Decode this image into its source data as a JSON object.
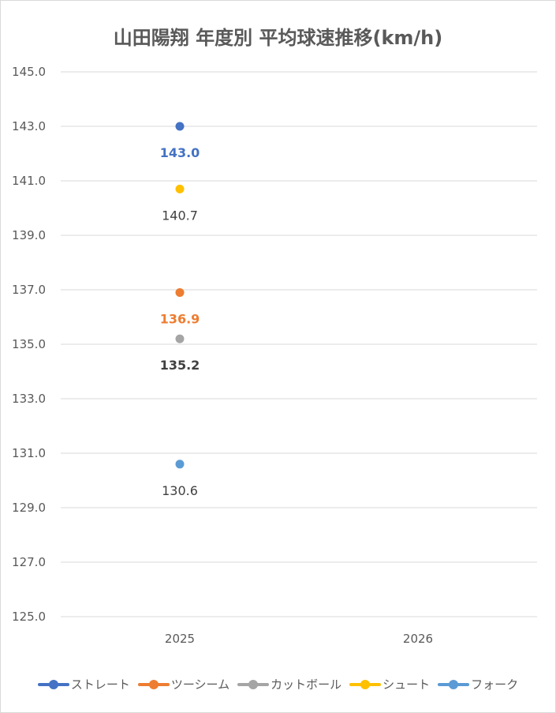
{
  "chart_data": {
    "type": "line",
    "title": "山田陽翔 年度別 平均球速推移(km/h)",
    "xlabel": "",
    "ylabel": "",
    "categories": [
      "2025",
      "2026"
    ],
    "ylim": [
      125.0,
      145.0
    ],
    "y_ticks": [
      "145.0",
      "143.0",
      "141.0",
      "139.0",
      "137.0",
      "135.0",
      "133.0",
      "131.0",
      "129.0",
      "127.0",
      "125.0"
    ],
    "grid": true,
    "legend_position": "bottom",
    "series": [
      {
        "name": "ストレート",
        "color": "#4472C4",
        "values": [
          143.0,
          null
        ],
        "labels": [
          "143.0",
          ""
        ],
        "label_color": "#4472C4"
      },
      {
        "name": "ツーシーム",
        "color": "#ED7D31",
        "values": [
          136.9,
          null
        ],
        "labels": [
          "136.9",
          ""
        ],
        "label_color": "#ED7D31"
      },
      {
        "name": "カットボール",
        "color": "#A5A5A5",
        "values": [
          135.2,
          null
        ],
        "labels": [
          "135.2",
          ""
        ],
        "label_color": "#404040"
      },
      {
        "name": "シュート",
        "color": "#FFC000",
        "values": [
          140.7,
          null
        ],
        "labels": [
          "140.7",
          ""
        ],
        "label_color": "#404040"
      },
      {
        "name": "フォーク",
        "color": "#5B9BD5",
        "values": [
          130.6,
          null
        ],
        "labels": [
          "130.6",
          ""
        ],
        "label_color": "#404040"
      }
    ]
  }
}
